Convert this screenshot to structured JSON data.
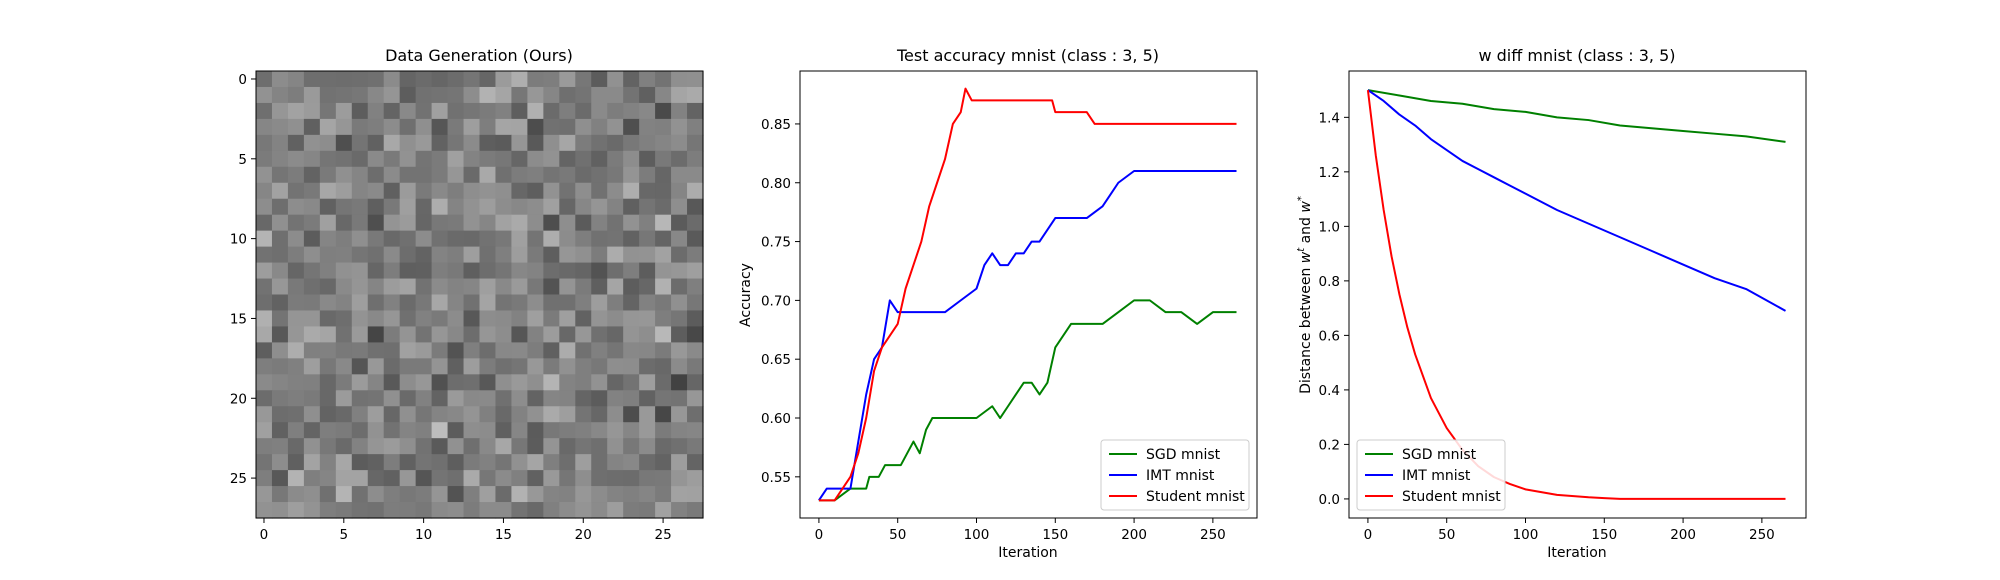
{
  "chart_data": [
    {
      "type": "heatmap",
      "title": "Data Generation (Ours)",
      "xlabel": "",
      "ylabel": "",
      "rows": 28,
      "cols": 28,
      "colormap": "gray",
      "x_ticks": [
        "0",
        "5",
        "10",
        "15",
        "20",
        "25"
      ],
      "y_ticks": [
        "0",
        "5",
        "10",
        "15",
        "20",
        "25"
      ],
      "value_range": [
        0,
        1
      ]
    },
    {
      "type": "line",
      "title": "Test accuracy mnist (class : 3, 5)",
      "xlabel": "Iteration",
      "ylabel": "Accuracy",
      "xlim": [
        -12,
        278
      ],
      "ylim": [
        0.515,
        0.895
      ],
      "x_ticks": [
        0,
        50,
        100,
        150,
        200,
        250
      ],
      "y_ticks": [
        0.55,
        0.6,
        0.65,
        0.7,
        0.75,
        0.8,
        0.85
      ],
      "y_tick_labels": [
        "0.55",
        "0.60",
        "0.65",
        "0.70",
        "0.75",
        "0.80",
        "0.85"
      ],
      "legend_position": "bottom-right",
      "series": [
        {
          "name": "SGD mnist",
          "color": "#008000",
          "x": [
            0,
            10,
            20,
            30,
            32,
            38,
            42,
            48,
            52,
            56,
            60,
            64,
            68,
            72,
            76,
            80,
            90,
            100,
            110,
            115,
            120,
            125,
            130,
            135,
            140,
            145,
            150,
            155,
            160,
            170,
            180,
            190,
            200,
            210,
            220,
            230,
            240,
            250,
            260,
            265
          ],
          "y": [
            0.53,
            0.53,
            0.54,
            0.54,
            0.55,
            0.55,
            0.56,
            0.56,
            0.56,
            0.57,
            0.58,
            0.57,
            0.59,
            0.6,
            0.6,
            0.6,
            0.6,
            0.6,
            0.61,
            0.6,
            0.61,
            0.62,
            0.63,
            0.63,
            0.62,
            0.63,
            0.66,
            0.67,
            0.68,
            0.68,
            0.68,
            0.69,
            0.7,
            0.7,
            0.69,
            0.69,
            0.68,
            0.69,
            0.69,
            0.69
          ]
        },
        {
          "name": "IMT mnist",
          "color": "#0000ff",
          "x": [
            0,
            5,
            10,
            15,
            20,
            25,
            30,
            35,
            40,
            45,
            50,
            55,
            60,
            65,
            70,
            80,
            90,
            100,
            105,
            110,
            115,
            120,
            125,
            130,
            135,
            140,
            145,
            150,
            155,
            160,
            170,
            180,
            185,
            190,
            200,
            210,
            220,
            230,
            240,
            250,
            260,
            265
          ],
          "y": [
            0.53,
            0.54,
            0.54,
            0.54,
            0.54,
            0.58,
            0.62,
            0.65,
            0.66,
            0.7,
            0.69,
            0.69,
            0.69,
            0.69,
            0.69,
            0.69,
            0.7,
            0.71,
            0.73,
            0.74,
            0.73,
            0.73,
            0.74,
            0.74,
            0.75,
            0.75,
            0.76,
            0.77,
            0.77,
            0.77,
            0.77,
            0.78,
            0.79,
            0.8,
            0.81,
            0.81,
            0.81,
            0.81,
            0.81,
            0.81,
            0.81,
            0.81
          ]
        },
        {
          "name": "Student mnist",
          "color": "#ff0000",
          "x": [
            0,
            5,
            10,
            15,
            20,
            25,
            30,
            35,
            40,
            45,
            50,
            55,
            60,
            65,
            70,
            75,
            80,
            85,
            90,
            93,
            97,
            100,
            110,
            120,
            130,
            140,
            148,
            150,
            160,
            170,
            175,
            180,
            185,
            200,
            220,
            240,
            265
          ],
          "y": [
            0.53,
            0.53,
            0.53,
            0.54,
            0.55,
            0.57,
            0.6,
            0.64,
            0.66,
            0.67,
            0.68,
            0.71,
            0.73,
            0.75,
            0.78,
            0.8,
            0.82,
            0.85,
            0.86,
            0.88,
            0.87,
            0.87,
            0.87,
            0.87,
            0.87,
            0.87,
            0.87,
            0.86,
            0.86,
            0.86,
            0.85,
            0.85,
            0.85,
            0.85,
            0.85,
            0.85,
            0.85
          ]
        }
      ]
    },
    {
      "type": "line",
      "title": "w diff mnist (class : 3, 5)",
      "xlabel": "Iteration",
      "ylabel_parts": {
        "prefix": "Distance between ",
        "w1": "w",
        "sup1": "t",
        "mid": " and ",
        "w2": "w",
        "sup2": "*"
      },
      "xlim": [
        -12,
        278
      ],
      "ylim": [
        -0.07,
        1.57
      ],
      "x_ticks": [
        0,
        50,
        100,
        150,
        200,
        250
      ],
      "y_ticks": [
        0.0,
        0.2,
        0.4,
        0.6,
        0.8,
        1.0,
        1.2,
        1.4
      ],
      "y_tick_labels": [
        "0.0",
        "0.2",
        "0.4",
        "0.6",
        "0.8",
        "1.0",
        "1.2",
        "1.4"
      ],
      "legend_position": "bottom-left",
      "series": [
        {
          "name": "SGD mnist",
          "color": "#008000",
          "x": [
            0,
            20,
            40,
            60,
            80,
            100,
            120,
            140,
            160,
            180,
            200,
            220,
            240,
            265
          ],
          "y": [
            1.5,
            1.48,
            1.46,
            1.45,
            1.43,
            1.42,
            1.4,
            1.39,
            1.37,
            1.36,
            1.35,
            1.34,
            1.33,
            1.31
          ]
        },
        {
          "name": "IMT mnist",
          "color": "#0000ff",
          "x": [
            0,
            10,
            20,
            30,
            40,
            50,
            60,
            70,
            80,
            90,
            100,
            120,
            140,
            160,
            180,
            200,
            220,
            240,
            265
          ],
          "y": [
            1.5,
            1.46,
            1.41,
            1.37,
            1.32,
            1.28,
            1.24,
            1.21,
            1.18,
            1.15,
            1.12,
            1.06,
            1.01,
            0.96,
            0.91,
            0.86,
            0.81,
            0.77,
            0.69
          ]
        },
        {
          "name": "Student mnist",
          "color": "#ff0000",
          "x": [
            0,
            5,
            10,
            15,
            20,
            25,
            30,
            40,
            50,
            60,
            70,
            80,
            90,
            100,
            120,
            140,
            150,
            160,
            180,
            200,
            230,
            265
          ],
          "y": [
            1.5,
            1.26,
            1.06,
            0.89,
            0.75,
            0.63,
            0.53,
            0.37,
            0.26,
            0.18,
            0.12,
            0.08,
            0.055,
            0.035,
            0.015,
            0.006,
            0.003,
            0.0,
            0.0,
            0.0,
            0.0,
            0.0
          ]
        }
      ]
    }
  ]
}
